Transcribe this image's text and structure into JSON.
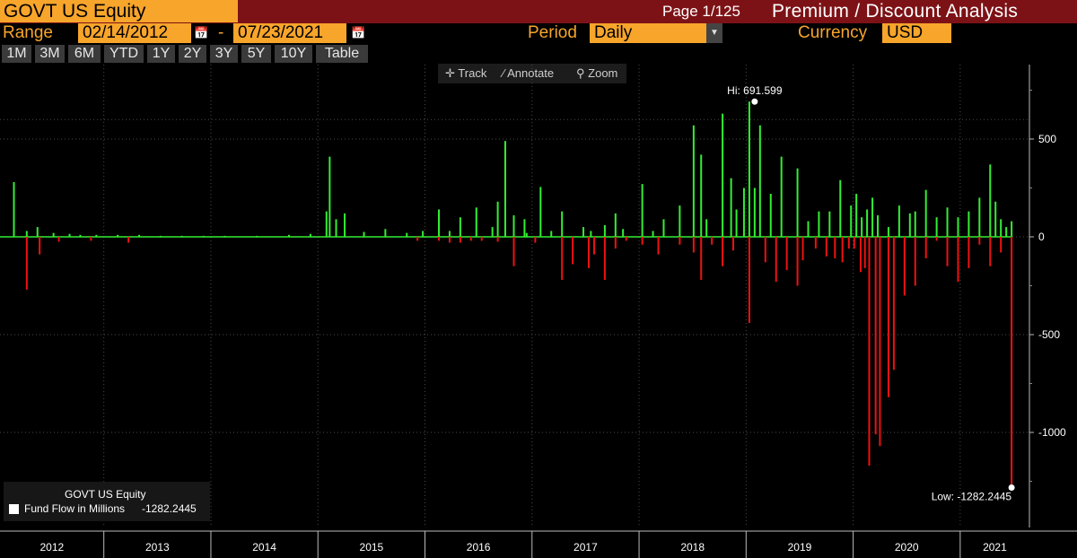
{
  "header": {
    "ticker": "GOVT US Equity",
    "page_indicator": "Page 1/125",
    "title": "Premium / Discount Analysis"
  },
  "controls": {
    "range_label": "Range",
    "start_date": "02/14/2012",
    "date_separator": "-",
    "end_date": "07/23/2021",
    "period_label": "Period",
    "period_value": "Daily",
    "currency_label": "Currency",
    "currency_value": "USD"
  },
  "range_tabs": [
    "1M",
    "3M",
    "6M",
    "YTD",
    "1Y",
    "2Y",
    "3Y",
    "5Y",
    "10Y",
    "Table"
  ],
  "chart_toolbar": {
    "track": "Track",
    "annotate": "Annotate",
    "zoom": "Zoom"
  },
  "legend": {
    "title": "GOVT US Equity",
    "series": "Fund Flow in Millions",
    "value": "-1282.2445"
  },
  "colors": {
    "accent": "#f7a52b",
    "header_bg": "#7d1216",
    "positive": "#33ee33",
    "negative": "#ee1111"
  },
  "chart_data": {
    "type": "bar",
    "title": "",
    "xlabel": "",
    "ylabel": "",
    "ylim": [
      -1400,
      880
    ],
    "y_ticks": [
      500,
      0,
      -500,
      -1000
    ],
    "y_tick_labels": [
      "500",
      "0",
      "-500",
      "-1000"
    ],
    "year_labels": [
      "2012",
      "2013",
      "2014",
      "2015",
      "2016",
      "2017",
      "2018",
      "2019",
      "2020",
      "2021"
    ],
    "grid": true,
    "legend_position": "bottom-left",
    "annotations": {
      "high_label": "Hi: 691.599",
      "high_value": 691.599,
      "high_date": "2019.05",
      "low_label": "Low: -1282.2445",
      "low_value": -1282.2445,
      "low_date": "2021.45"
    },
    "series": [
      {
        "name": "Fund Flow in Millions",
        "x": [
          2012.13,
          2012.25,
          2012.35,
          2012.5,
          2012.65,
          2012.75,
          2012.9,
          2013.1,
          2013.3,
          2013.5,
          2013.7,
          2013.9,
          2014.1,
          2014.4,
          2014.7,
          2014.9,
          2015.05,
          2015.08,
          2015.14,
          2015.22,
          2015.4,
          2015.6,
          2015.8,
          2015.95,
          2016.1,
          2016.2,
          2016.3,
          2016.45,
          2016.6,
          2016.65,
          2016.72,
          2016.8,
          2016.9,
          2016.92,
          2017.05,
          2017.15,
          2017.25,
          2017.45,
          2017.52,
          2017.65,
          2017.75,
          2017.82,
          2018.0,
          2018.1,
          2018.2,
          2018.35,
          2018.48,
          2018.55,
          2018.6,
          2018.75,
          2018.83,
          2018.88,
          2018.95,
          2019.0,
          2019.05,
          2019.1,
          2019.2,
          2019.3,
          2019.45,
          2019.55,
          2019.65,
          2019.75,
          2019.85,
          2019.95,
          2020.0,
          2020.05,
          2020.1,
          2020.15,
          2020.2,
          2020.3,
          2020.4,
          2020.5,
          2020.55,
          2020.65,
          2020.75,
          2020.85,
          2020.95,
          2021.05,
          2021.15,
          2021.25,
          2021.3,
          2021.35,
          2021.4,
          2021.45
        ],
        "values": [
          280,
          30,
          50,
          20,
          15,
          10,
          10,
          10,
          10,
          5,
          5,
          5,
          5,
          5,
          10,
          15,
          130,
          410,
          90,
          120,
          25,
          40,
          20,
          30,
          140,
          30,
          100,
          150,
          50,
          180,
          490,
          110,
          90,
          20,
          255,
          30,
          130,
          50,
          30,
          60,
          120,
          40,
          270,
          30,
          90,
          160,
          570,
          420,
          90,
          630,
          300,
          140,
          250,
          691.599,
          250,
          570,
          220,
          410,
          350,
          80,
          130,
          130,
          290,
          160,
          220,
          100,
          140,
          200,
          110,
          50,
          160,
          120,
          130,
          240,
          100,
          150,
          100,
          130,
          200,
          370,
          180,
          90,
          50,
          80
        ]
      },
      {
        "name": "Fund Flow in Millions",
        "x": [
          2012.25,
          2012.37,
          2012.55,
          2012.85,
          2013.2,
          2015.9,
          2016.1,
          2016.2,
          2016.3,
          2016.4,
          2016.5,
          2016.65,
          2016.8,
          2017.0,
          2017.25,
          2017.35,
          2017.5,
          2017.55,
          2017.65,
          2017.75,
          2017.85,
          2018.0,
          2018.15,
          2018.35,
          2018.48,
          2018.55,
          2018.65,
          2018.75,
          2018.85,
          2019.0,
          2019.15,
          2019.25,
          2019.35,
          2019.45,
          2019.5,
          2019.62,
          2019.72,
          2019.8,
          2019.87,
          2019.93,
          2019.98,
          2020.04,
          2020.08,
          2020.12,
          2020.18,
          2020.22,
          2020.3,
          2020.35,
          2020.45,
          2020.55,
          2020.65,
          2020.75,
          2020.85,
          2020.95,
          2021.05,
          2021.15,
          2021.25,
          2021.35
        ],
        "values": [
          -270,
          -90,
          -25,
          -20,
          -30,
          -20,
          -20,
          -30,
          -30,
          -20,
          -20,
          -25,
          -150,
          -30,
          -220,
          -140,
          -160,
          -90,
          -220,
          -60,
          -20,
          -40,
          -90,
          -40,
          -80,
          -220,
          -40,
          -150,
          -70,
          -440,
          -130,
          -230,
          -170,
          -250,
          -120,
          -60,
          -100,
          -110,
          -130,
          -60,
          -60,
          -180,
          -160,
          -1170,
          -1010,
          -1070,
          -820,
          -680,
          -300,
          -250,
          -110,
          -20,
          -150,
          -230,
          -160,
          -40,
          -150,
          -80
        ]
      },
      {
        "name": "Fund Flow in Millions",
        "x": [
          2021.45
        ],
        "values": [
          -1282.2445
        ]
      }
    ]
  }
}
